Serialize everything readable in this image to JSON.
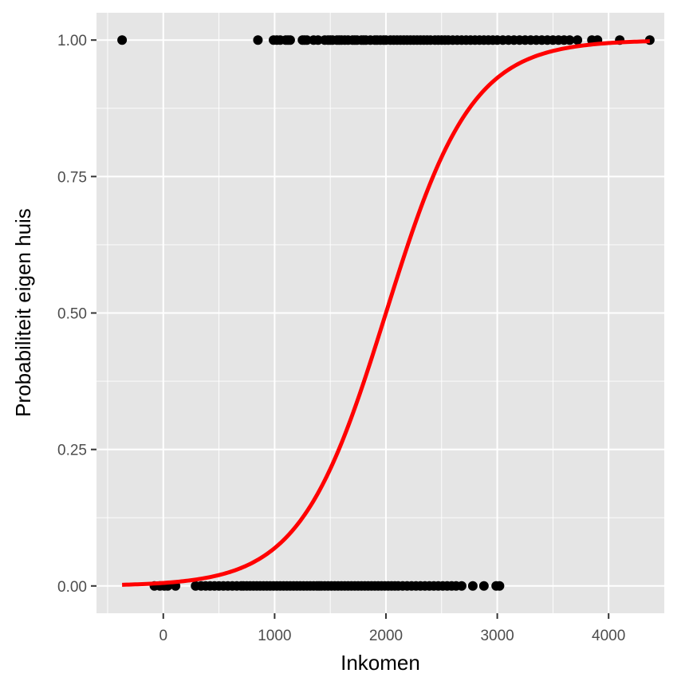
{
  "chart_data": {
    "type": "scatter",
    "title": "",
    "xlabel": "Inkomen",
    "ylabel": "Probabiliteit eigen huis",
    "xlim": [
      -600,
      4500
    ],
    "ylim": [
      -0.05,
      1.05
    ],
    "x_ticks": [
      0,
      1000,
      2000,
      3000,
      4000
    ],
    "x_tick_labels": [
      "0",
      "1000",
      "2000",
      "3000",
      "4000"
    ],
    "y_ticks": [
      0,
      0.25,
      0.5,
      0.75,
      1
    ],
    "y_tick_labels": [
      "0.00",
      "0.25",
      "0.50",
      "0.75",
      "1.00"
    ],
    "grid": true,
    "background": "#e5e5e5",
    "grid_color": "#ffffff",
    "point_color": "#000000",
    "curve_color": "#ff0000",
    "series": [
      {
        "values_y": 1,
        "x": [
          -370,
          850,
          990,
          1020,
          1050,
          1100,
          1120,
          1140,
          1250,
          1270,
          1290,
          1350,
          1390,
          1450,
          1480,
          1500,
          1520,
          1560,
          1580,
          1600,
          1630,
          1660,
          1700,
          1720,
          1740,
          1780,
          1800,
          1820,
          1860,
          1900,
          1920,
          1950,
          1980,
          2000,
          2040,
          2070,
          2100,
          2130,
          2160,
          2190,
          2220,
          2250,
          2280,
          2310,
          2340,
          2370,
          2400,
          2440,
          2470,
          2500,
          2530,
          2560,
          2600,
          2640,
          2680,
          2720,
          2760,
          2800,
          2840,
          2880,
          2920,
          2960,
          3000,
          3050,
          3100,
          3150,
          3200,
          3250,
          3300,
          3350,
          3400,
          3450,
          3500,
          3550,
          3600,
          3650,
          3720,
          3850,
          3900,
          4100,
          4370
        ]
      },
      {
        "values_y": 0,
        "x": [
          -80,
          -30,
          10,
          40,
          110,
          290,
          340,
          380,
          420,
          460,
          500,
          540,
          580,
          620,
          660,
          700,
          720,
          750,
          780,
          810,
          840,
          870,
          900,
          930,
          960,
          990,
          1020,
          1050,
          1080,
          1110,
          1140,
          1170,
          1200,
          1230,
          1260,
          1290,
          1320,
          1350,
          1380,
          1400,
          1420,
          1450,
          1480,
          1510,
          1540,
          1570,
          1600,
          1630,
          1660,
          1690,
          1720,
          1750,
          1780,
          1810,
          1840,
          1870,
          1900,
          1930,
          1960,
          1990,
          2020,
          2050,
          2080,
          2110,
          2150,
          2190,
          2230,
          2270,
          2310,
          2350,
          2390,
          2430,
          2470,
          2510,
          2550,
          2590,
          2630,
          2680,
          2780,
          2880,
          2990,
          3020
        ]
      }
    ],
    "fitted_curve": {
      "type": "logistic",
      "midpoint": 2000,
      "scale": 385,
      "x_range": [
        -370,
        4370
      ]
    }
  }
}
